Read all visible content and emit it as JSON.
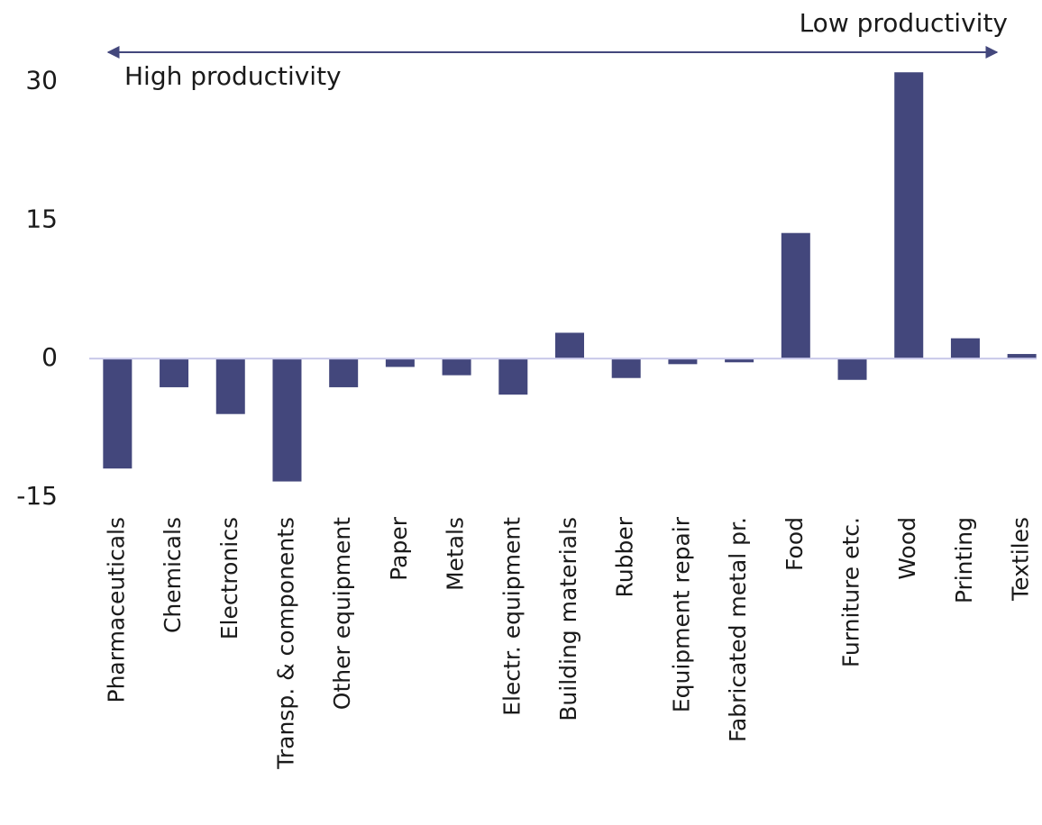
{
  "chart_data": {
    "type": "bar",
    "annotations": [
      "High productivity",
      "Low productivity"
    ],
    "categories": [
      "Pharmaceuticals",
      "Chemicals",
      "Electronics",
      "Transp. & components",
      "Other equipment",
      "Paper",
      "Metals",
      "Electr. equipment",
      "Building materials",
      "Rubber",
      "Equipment repair",
      "Fabricated metal pr.",
      "Food",
      "Furniture etc.",
      "Wood",
      "Printing",
      "Textiles"
    ],
    "values": [
      -11.9,
      -3.1,
      -6.0,
      -13.3,
      -3.1,
      -0.9,
      -1.8,
      -3.9,
      2.8,
      -2.1,
      -0.6,
      -0.4,
      13.6,
      -2.3,
      31.0,
      2.2,
      0.5
    ],
    "color": "#43477c",
    "ylim": [
      -15,
      32
    ],
    "yticks": [
      -15,
      0,
      15,
      30
    ],
    "grid": false
  }
}
